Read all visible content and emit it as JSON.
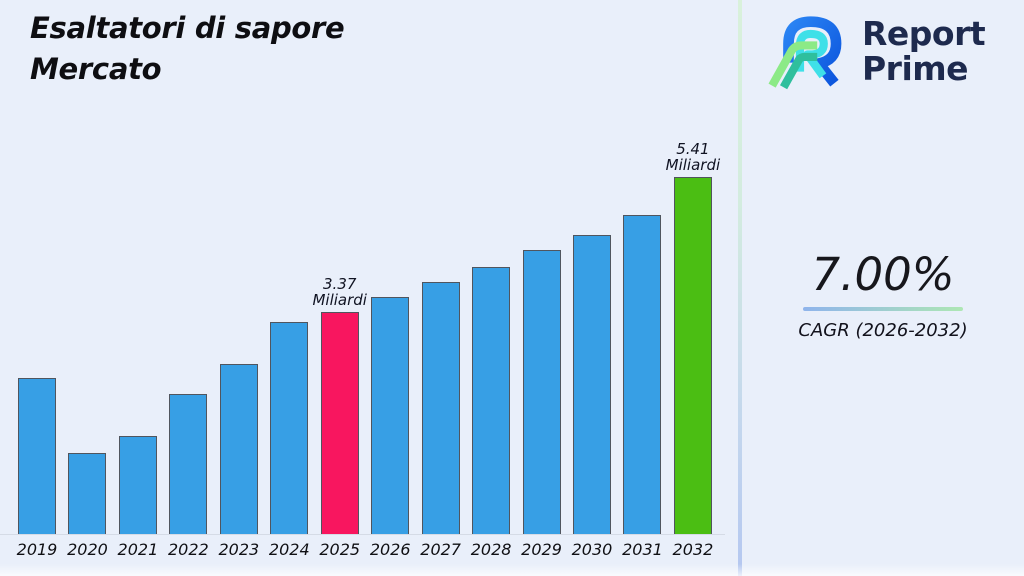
{
  "header": {
    "title_line1": "Esaltatori di sapore",
    "title_line2": "Mercato"
  },
  "logo": {
    "name_line1": "Report",
    "name_line2": "Prime"
  },
  "cagr": {
    "value": "7.00%",
    "label": "CAGR (2026-2032)",
    "underline_colors": [
      "#8fb4ec",
      "#aee7b4"
    ]
  },
  "chart_data": {
    "type": "bar",
    "title": "Esaltatori di sapore Mercato",
    "unit": "Miliardi",
    "categories": [
      "2019",
      "2020",
      "2021",
      "2022",
      "2023",
      "2024",
      "2025",
      "2026",
      "2027",
      "2028",
      "2029",
      "2030",
      "2031",
      "2032"
    ],
    "values": [
      2.36,
      1.22,
      1.48,
      2.12,
      2.57,
      3.21,
      3.37,
      3.59,
      3.82,
      4.05,
      4.3,
      4.53,
      4.84,
      5.41
    ],
    "annotations": [
      {
        "index": 6,
        "line1": "3.37",
        "line2": "Miliardi"
      },
      {
        "index": 13,
        "line1": "5.41",
        "line2": "Miliardi"
      }
    ],
    "highlight_current_index": 6,
    "highlight_final_index": 13,
    "colors": {
      "default": "#379FE5",
      "highlight_current": "#F8165F",
      "highlight_final": "#4BBE13",
      "bar_border": "#50555E"
    },
    "ylim": [
      0,
      5.6
    ],
    "xlabel": "",
    "ylabel": "",
    "gridlines": false,
    "legend": false
  }
}
